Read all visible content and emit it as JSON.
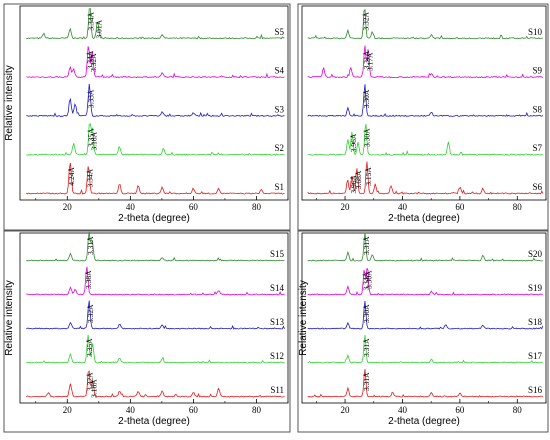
{
  "chart_data": [
    {
      "type": "line",
      "xlabel": "2-theta (degree)",
      "ylabel": "Relative intensity",
      "xlim": [
        5,
        90
      ],
      "x_ticks": [
        "20",
        "40",
        "60",
        "80"
      ],
      "series": [
        {
          "name": "S5",
          "color": "#2e8b2e",
          "peaks": [
            {
              "x": 27.1,
              "h": 1.0,
              "label": "3.34Å"
            },
            {
              "x": 29.6,
              "h": 0.55,
              "label": "3.01Å"
            },
            {
              "x": 20.9,
              "h": 0.3
            },
            {
              "x": 12.5,
              "h": 0.15
            },
            {
              "x": 50.1,
              "h": 0.12
            }
          ]
        },
        {
          "name": "S4",
          "color": "#e000e0",
          "peaks": [
            {
              "x": 26.7,
              "h": 1.0,
              "label": "3.34Å"
            },
            {
              "x": 27.9,
              "h": 0.85,
              "label": "3.32Å"
            },
            {
              "x": 20.9,
              "h": 0.3
            },
            {
              "x": 22.0,
              "h": 0.25
            },
            {
              "x": 50.1,
              "h": 0.12
            }
          ]
        },
        {
          "name": "S3",
          "color": "#1a1acc",
          "peaks": [
            {
              "x": 27.0,
              "h": 1.0,
              "label": "3.33Å"
            },
            {
              "x": 20.9,
              "h": 0.55
            },
            {
              "x": 22.5,
              "h": 0.4
            },
            {
              "x": 50.1,
              "h": 0.12
            },
            {
              "x": 60.0,
              "h": 0.1
            }
          ]
        },
        {
          "name": "S2",
          "color": "#33d033",
          "peaks": [
            {
              "x": 27.1,
              "h": 1.0,
              "label": "3.35Å"
            },
            {
              "x": 28.0,
              "h": 0.8,
              "label": "3.18Å"
            },
            {
              "x": 22.0,
              "h": 0.35
            },
            {
              "x": 36.5,
              "h": 0.25
            },
            {
              "x": 50.5,
              "h": 0.2
            }
          ]
        },
        {
          "name": "S1",
          "color": "#e81a1a",
          "peaks": [
            {
              "x": 20.9,
              "h": 1.0,
              "label": "4.24Å"
            },
            {
              "x": 26.7,
              "h": 0.9,
              "label": "3.34Å"
            },
            {
              "x": 36.6,
              "h": 0.3
            },
            {
              "x": 42.5,
              "h": 0.25
            },
            {
              "x": 50.1,
              "h": 0.2
            },
            {
              "x": 60.0,
              "h": 0.15
            },
            {
              "x": 68.0,
              "h": 0.15
            },
            {
              "x": 81.5,
              "h": 0.12
            }
          ]
        }
      ]
    },
    {
      "type": "line",
      "xlabel": "2-theta (degree)",
      "ylabel": "",
      "xlim": [
        5,
        90
      ],
      "x_ticks": [
        "20",
        "40",
        "60",
        "80"
      ],
      "series": [
        {
          "name": "S10",
          "color": "#2e8b2e",
          "peaks": [
            {
              "x": 26.8,
              "h": 1.0,
              "label": "3.32Å"
            },
            {
              "x": 21.0,
              "h": 0.25
            },
            {
              "x": 29.5,
              "h": 0.2
            },
            {
              "x": 50.1,
              "h": 0.1
            }
          ]
        },
        {
          "name": "S9",
          "color": "#e000e0",
          "peaks": [
            {
              "x": 26.9,
              "h": 1.0,
              "label": "3.31Å"
            },
            {
              "x": 28.1,
              "h": 0.9,
              "label": "3.17Å"
            },
            {
              "x": 12.5,
              "h": 0.3
            },
            {
              "x": 22.0,
              "h": 0.3
            },
            {
              "x": 50.1,
              "h": 0.12
            }
          ]
        },
        {
          "name": "S8",
          "color": "#1a1acc",
          "peaks": [
            {
              "x": 26.9,
              "h": 1.0,
              "label": "3.30Å"
            },
            {
              "x": 21.0,
              "h": 0.25
            },
            {
              "x": 50.1,
              "h": 0.12
            }
          ]
        },
        {
          "name": "S7",
          "color": "#33d033",
          "peaks": [
            {
              "x": 22.4,
              "h": 0.7,
              "label": "3.96Å"
            },
            {
              "x": 27.2,
              "h": 1.0,
              "label": "3.30Å"
            },
            {
              "x": 24.5,
              "h": 0.4
            },
            {
              "x": 21.0,
              "h": 0.5
            },
            {
              "x": 56.0,
              "h": 0.4
            }
          ]
        },
        {
          "name": "S6",
          "color": "#e81a1a",
          "peaks": [
            {
              "x": 22.4,
              "h": 0.55,
              "label": "3.96Å"
            },
            {
              "x": 24.1,
              "h": 0.8,
              "label": "3.68Å"
            },
            {
              "x": 27.6,
              "h": 1.0,
              "label": "3.15Å"
            },
            {
              "x": 20.9,
              "h": 0.45
            },
            {
              "x": 30.5,
              "h": 0.3
            },
            {
              "x": 36.0,
              "h": 0.25
            },
            {
              "x": 60.0,
              "h": 0.2
            },
            {
              "x": 68.0,
              "h": 0.15
            }
          ]
        }
      ]
    },
    {
      "type": "line",
      "xlabel": "2-theta (degree)",
      "ylabel": "Relative intensity",
      "xlim": [
        5,
        90
      ],
      "x_ticks": [
        "20",
        "40",
        "60",
        "80"
      ],
      "series": [
        {
          "name": "S15",
          "color": "#2e8b2e",
          "peaks": [
            {
              "x": 26.9,
              "h": 1.0,
              "label": "3.31Å"
            },
            {
              "x": 27.9,
              "h": 0.7
            },
            {
              "x": 21.0,
              "h": 0.25
            },
            {
              "x": 50.1,
              "h": 0.12
            }
          ]
        },
        {
          "name": "S14",
          "color": "#e000e0",
          "peaks": [
            {
              "x": 26.2,
              "h": 1.0,
              "label": "3.38Å"
            },
            {
              "x": 21.0,
              "h": 0.25
            },
            {
              "x": 22.5,
              "h": 0.2
            },
            {
              "x": 68.0,
              "h": 0.15
            }
          ]
        },
        {
          "name": "S13",
          "color": "#1a1acc",
          "peaks": [
            {
              "x": 26.9,
              "h": 1.0,
              "label": "3.32Å"
            },
            {
              "x": 21.0,
              "h": 0.2
            },
            {
              "x": 36.6,
              "h": 0.15
            },
            {
              "x": 50.1,
              "h": 0.12
            }
          ]
        },
        {
          "name": "S12",
          "color": "#33d033",
          "peaks": [
            {
              "x": 26.6,
              "h": 1.0,
              "label": "3.35Å"
            },
            {
              "x": 28.0,
              "h": 0.7
            },
            {
              "x": 21.0,
              "h": 0.3
            },
            {
              "x": 36.6,
              "h": 0.15
            },
            {
              "x": 50.1,
              "h": 0.12
            }
          ]
        },
        {
          "name": "S11",
          "color": "#e81a1a",
          "peaks": [
            {
              "x": 26.8,
              "h": 1.0,
              "label": "3.32Å"
            },
            {
              "x": 28.0,
              "h": 0.55,
              "label": "3.18Å"
            },
            {
              "x": 21.0,
              "h": 0.45
            },
            {
              "x": 14.0,
              "h": 0.15
            },
            {
              "x": 36.6,
              "h": 0.2
            },
            {
              "x": 42.5,
              "h": 0.18
            },
            {
              "x": 50.1,
              "h": 0.2
            },
            {
              "x": 60.0,
              "h": 0.15
            },
            {
              "x": 68.0,
              "h": 0.3
            }
          ]
        }
      ]
    },
    {
      "type": "line",
      "xlabel": "2-theta (degree)",
      "ylabel": "Relative intensity",
      "xlim": [
        5,
        90
      ],
      "x_ticks": [
        "20",
        "40",
        "60",
        "80"
      ],
      "series": [
        {
          "name": "S20",
          "color": "#2e8b2e",
          "peaks": [
            {
              "x": 26.9,
              "h": 1.0,
              "label": "3.31Å"
            },
            {
              "x": 21.0,
              "h": 0.3
            },
            {
              "x": 29.5,
              "h": 0.2
            },
            {
              "x": 68.0,
              "h": 0.2
            }
          ]
        },
        {
          "name": "S19",
          "color": "#e000e0",
          "peaks": [
            {
              "x": 26.7,
              "h": 0.9,
              "label": "3.34Å"
            },
            {
              "x": 27.8,
              "h": 1.0,
              "label": "3.30Å"
            },
            {
              "x": 21.0,
              "h": 0.3
            },
            {
              "x": 50.1,
              "h": 0.12
            }
          ]
        },
        {
          "name": "S18",
          "color": "#1a1acc",
          "peaks": [
            {
              "x": 26.9,
              "h": 1.0,
              "label": "3.30Å"
            },
            {
              "x": 21.0,
              "h": 0.2
            },
            {
              "x": 55.0,
              "h": 0.15
            },
            {
              "x": 68.0,
              "h": 0.12
            }
          ]
        },
        {
          "name": "S17",
          "color": "#33d033",
          "peaks": [
            {
              "x": 26.9,
              "h": 1.0,
              "label": "3.31Å"
            },
            {
              "x": 21.0,
              "h": 0.25
            },
            {
              "x": 50.1,
              "h": 0.12
            }
          ]
        },
        {
          "name": "S16",
          "color": "#e81a1a",
          "peaks": [
            {
              "x": 26.9,
              "h": 1.0,
              "label": "3.31Å"
            },
            {
              "x": 21.0,
              "h": 0.3
            },
            {
              "x": 36.6,
              "h": 0.15
            },
            {
              "x": 50.1,
              "h": 0.15
            },
            {
              "x": 60.0,
              "h": 0.12
            }
          ]
        }
      ]
    }
  ]
}
